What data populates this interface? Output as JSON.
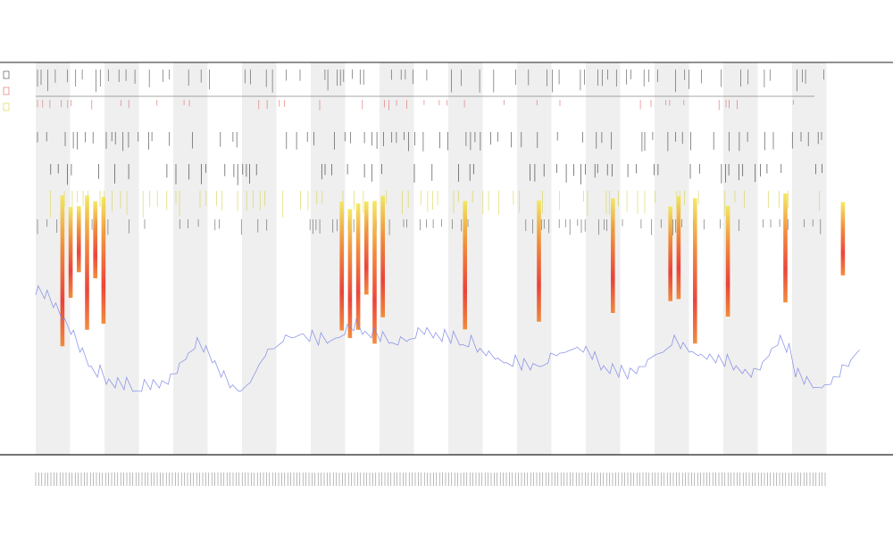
{
  "chart_data": {
    "type": "line",
    "title": "",
    "subtitle_lines": [
      "",
      ""
    ],
    "xlabel": "",
    "ylabel": "",
    "grid": false,
    "legend": "none",
    "colors": {
      "density_line": "#7b86e6",
      "heat_high": "#e8241a",
      "heat_mid": "#f07a1c",
      "heat_low": "#f2e64a",
      "band_fill": "#efefef",
      "axis": "#222222",
      "mark": "#333333"
    },
    "shaded_bands": 12,
    "series": [
      {
        "values": [
          0.62,
          0.6,
          0.55,
          0.48,
          0.4,
          0.3,
          0.22,
          0.16,
          0.12,
          0.1,
          0.09,
          0.08,
          0.08,
          0.09,
          0.1,
          0.12,
          0.18,
          0.26,
          0.32,
          0.3,
          0.24,
          0.16,
          0.1,
          0.08,
          0.12,
          0.2,
          0.28,
          0.32,
          0.36,
          0.38,
          0.4,
          0.36,
          0.34,
          0.35,
          0.38,
          0.4,
          0.42,
          0.4,
          0.38,
          0.36,
          0.35,
          0.34,
          0.36,
          0.38,
          0.4,
          0.38,
          0.36,
          0.35,
          0.34,
          0.33,
          0.3,
          0.28,
          0.26,
          0.24,
          0.22,
          0.2,
          0.2,
          0.22,
          0.24,
          0.28,
          0.3,
          0.32,
          0.3,
          0.26,
          0.2,
          0.18,
          0.16,
          0.15,
          0.18,
          0.22,
          0.28,
          0.3,
          0.34,
          0.32,
          0.3,
          0.28,
          0.26,
          0.24,
          0.22,
          0.2,
          0.18,
          0.16,
          0.2,
          0.28,
          0.34,
          0.3,
          0.16,
          0.12,
          0.1,
          0.1,
          0.12,
          0.16,
          0.22,
          0.3
        ]
      }
    ],
    "heat_columns": [
      3,
      4,
      5,
      6,
      7,
      8,
      37,
      38,
      39,
      40,
      41,
      42,
      52,
      61,
      70,
      77,
      78,
      80,
      84,
      91,
      98
    ]
  }
}
